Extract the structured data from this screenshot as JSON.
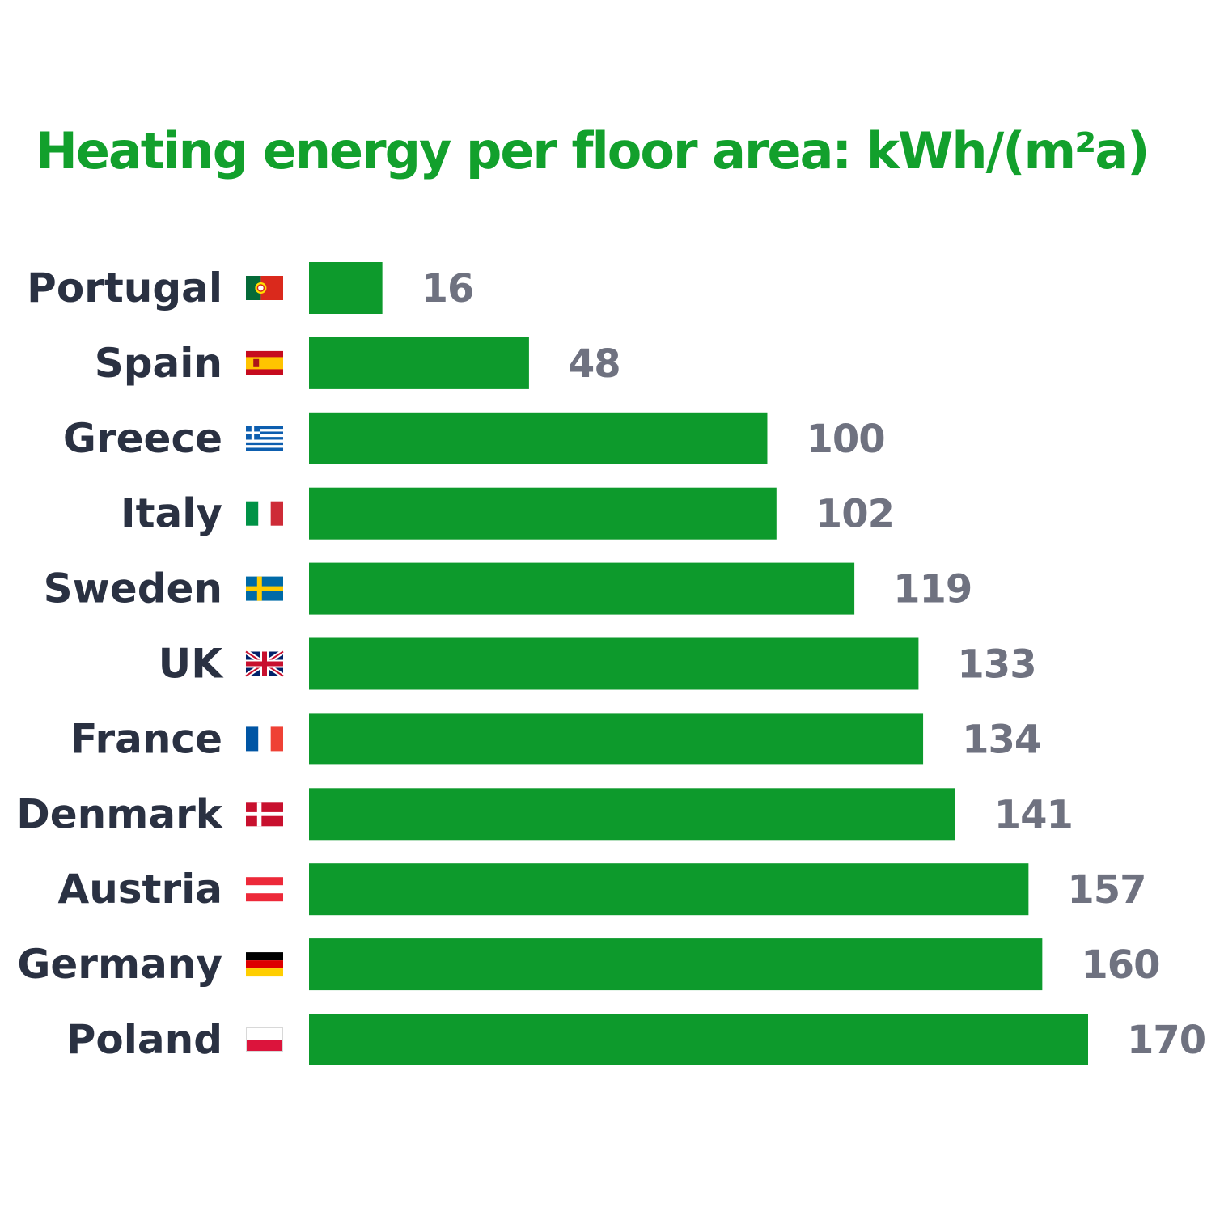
{
  "colors": {
    "title": "#12A02C",
    "bar": "#0D9A2C",
    "category_text": "#2A3142",
    "value_text": "#6F7280",
    "background": "#FFFFFF"
  },
  "chart_data": {
    "type": "bar",
    "orientation": "horizontal",
    "title": "Heating energy per floor area: kWh/(m²a)",
    "xlabel": "",
    "ylabel": "",
    "xlim": [
      0,
      170
    ],
    "grid": false,
    "legend": "none",
    "categories": [
      "Portugal",
      "Spain",
      "Greece",
      "Italy",
      "Sweden",
      "UK",
      "France",
      "Denmark",
      "Austria",
      "Germany",
      "Poland"
    ],
    "values": [
      16,
      48,
      100,
      102,
      119,
      133,
      134,
      141,
      157,
      160,
      170
    ],
    "value_labels": [
      "16",
      "48",
      "100",
      "102",
      "119",
      "133",
      "134",
      "141",
      "157",
      "160",
      "170"
    ],
    "flags": [
      "portugal-flag-icon",
      "spain-flag-icon",
      "greece-flag-icon",
      "italy-flag-icon",
      "sweden-flag-icon",
      "uk-flag-icon",
      "france-flag-icon",
      "denmark-flag-icon",
      "austria-flag-icon",
      "germany-flag-icon",
      "poland-flag-icon"
    ]
  }
}
